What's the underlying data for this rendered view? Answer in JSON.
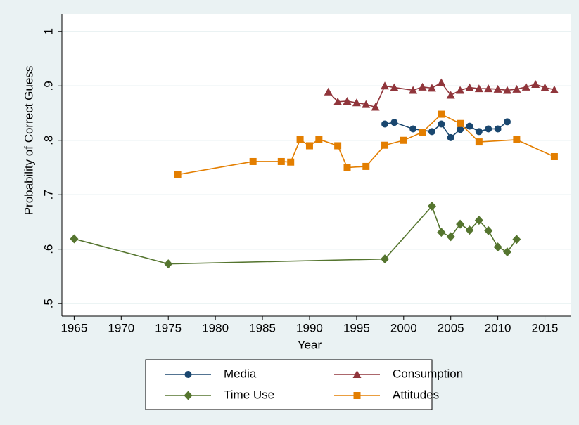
{
  "chart_data": {
    "type": "line",
    "x_label": "Year",
    "y_label": "Probability of Correct Guess",
    "xlim": [
      1963.7,
      2017.8
    ],
    "ylim": [
      0.477,
      1.032
    ],
    "xticks": [
      1965,
      1970,
      1975,
      1980,
      1985,
      1990,
      1995,
      2000,
      2005,
      2010,
      2015
    ],
    "yticks": [
      {
        "value": 0.5,
        "label": ".5"
      },
      {
        "value": 0.6,
        "label": ".6"
      },
      {
        "value": 0.7,
        "label": ".7"
      },
      {
        "value": 0.8,
        "label": ".8"
      },
      {
        "value": 0.9,
        "label": ".9"
      },
      1
    ],
    "grid": true,
    "series": [
      {
        "name": "Media",
        "color": "#1a476f",
        "marker": "circle",
        "x": [
          1998,
          1999,
          2001,
          2003,
          2004,
          2005,
          2006,
          2007,
          2008,
          2009,
          2010,
          2011
        ],
        "values": [
          0.83,
          0.833,
          0.821,
          0.816,
          0.83,
          0.805,
          0.82,
          0.826,
          0.816,
          0.821,
          0.821,
          0.834
        ]
      },
      {
        "name": "Consumption",
        "color": "#90353b",
        "marker": "triangle",
        "x": [
          1992,
          1993,
          1994,
          1995,
          1996,
          1997,
          1998,
          1999,
          2001,
          2002,
          2003,
          2004,
          2005,
          2006,
          2007,
          2008,
          2009,
          2010,
          2011,
          2012,
          2013,
          2014,
          2015,
          2016
        ],
        "values": [
          0.889,
          0.871,
          0.872,
          0.869,
          0.866,
          0.861,
          0.9,
          0.897,
          0.892,
          0.898,
          0.896,
          0.906,
          0.883,
          0.892,
          0.897,
          0.895,
          0.895,
          0.894,
          0.892,
          0.894,
          0.898,
          0.903,
          0.897,
          0.893
        ]
      },
      {
        "name": "Time Use",
        "color": "#55752f",
        "marker": "diamond",
        "x": [
          1965,
          1975,
          1998,
          2003,
          2004,
          2005,
          2006,
          2007,
          2008,
          2009,
          2010,
          2011,
          2012
        ],
        "values": [
          0.619,
          0.573,
          0.582,
          0.679,
          0.631,
          0.623,
          0.646,
          0.635,
          0.653,
          0.634,
          0.604,
          0.595,
          0.618
        ]
      },
      {
        "name": "Attitudes",
        "color": "#e37e00",
        "marker": "square",
        "x": [
          1976,
          1984,
          1987,
          1988,
          1989,
          1990,
          1991,
          1993,
          1994,
          1996,
          1998,
          2000,
          2002,
          2004,
          2006,
          2008,
          2012,
          2016
        ],
        "values": [
          0.737,
          0.761,
          0.761,
          0.76,
          0.801,
          0.79,
          0.802,
          0.79,
          0.75,
          0.752,
          0.791,
          0.8,
          0.815,
          0.848,
          0.831,
          0.797,
          0.801,
          0.77
        ]
      }
    ]
  }
}
